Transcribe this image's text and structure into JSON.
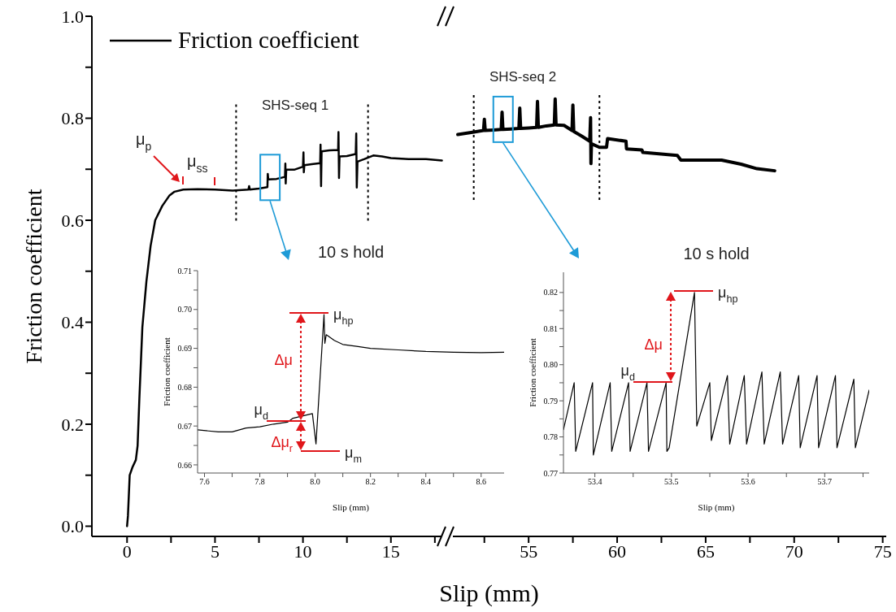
{
  "chart_data": [
    {
      "type": "line",
      "xlabel": "Slip (mm)",
      "ylabel": "Friction coefficient",
      "legend": "top left",
      "x": [
        0,
        0.05,
        0.15,
        0.3,
        0.5,
        0.6,
        0.7,
        0.87,
        1.1,
        1.34,
        1.6,
        2.0,
        2.4,
        2.7,
        3.2,
        4.0,
        5.0,
        6.0,
        6.9,
        6.94,
        6.98,
        7.5,
        7.98,
        8.0,
        8.03,
        8.5,
        8.98,
        9.0,
        9.02,
        9.05,
        9.5,
        10.0,
        10.03,
        10.05,
        10.08,
        10.5,
        10.98,
        11.0,
        11.03,
        11.06,
        11.5,
        12.0,
        12.02,
        12.05,
        12.08,
        12.5,
        13.0,
        13.03,
        13.06,
        13.1,
        13.5,
        14.0,
        14.5,
        15.0,
        16.0,
        17.0,
        17.9
      ],
      "series": [
        {
          "name": "Friction coefficient",
          "color": "#000000",
          "values": [
            0,
            0.02,
            0.1,
            0.115,
            0.13,
            0.158,
            0.25,
            0.39,
            0.48,
            0.55,
            0.6,
            0.628,
            0.648,
            0.656,
            0.66,
            0.661,
            0.66,
            0.658,
            0.66,
            0.667,
            0.66,
            0.662,
            0.665,
            0.691,
            0.68,
            0.681,
            0.685,
            0.711,
            0.672,
            0.699,
            0.699,
            0.705,
            0.733,
            0.694,
            0.708,
            0.71,
            0.712,
            0.748,
            0.667,
            0.735,
            0.737,
            0.738,
            0.773,
            0.683,
            0.725,
            0.726,
            0.73,
            0.77,
            0.664,
            0.715,
            0.72,
            0.727,
            0.725,
            0.722,
            0.72,
            0.72,
            0.717
          ]
        }
      ],
      "xlim": [
        -2.0,
        18.2
      ],
      "ylim": [
        -0.02,
        1.0
      ],
      "xticks": [
        0,
        {
          "value": 2.5,
          "label": null
        },
        5,
        {
          "value": 7.5,
          "label": null
        },
        10,
        {
          "value": 12.5,
          "label": null
        },
        15,
        {
          "value": 17.5,
          "label": null
        }
      ],
      "yticks": [
        {
          "value": 0,
          "label": "0.0"
        },
        {
          "value": 0.1,
          "label": null
        },
        0.2,
        {
          "value": 0.3,
          "label": null
        },
        0.4,
        {
          "value": 0.5,
          "label": null
        },
        0.6,
        {
          "value": 0.7,
          "label": null
        },
        0.8,
        {
          "value": 0.9,
          "label": null
        },
        {
          "value": 1,
          "label": "1.0"
        }
      ],
      "ref_lines": [
        {
          "axis": "x",
          "value": 6.2,
          "color": "#000000",
          "line_style": "dotted"
        },
        {
          "axis": "x",
          "value": 13.7,
          "color": "#000000",
          "line_style": "dotted"
        }
      ],
      "annotations": [
        "μ$_{p}$",
        "μ$_{ss}$",
        "SHS-seq 1"
      ]
    },
    {
      "type": "line",
      "tick_labels": "x",
      "x": [
        51.0,
        51.9,
        52.45,
        52.5,
        52.55,
        53.0,
        53.45,
        53.5,
        53.55,
        54.0,
        54.45,
        54.5,
        54.55,
        55.0,
        55.45,
        55.5,
        55.55,
        56.0,
        56.45,
        56.5,
        56.55,
        57.0,
        57.45,
        57.5,
        57.55,
        58.0,
        58.45,
        58.5,
        58.52,
        58.55,
        59.0,
        59.4,
        59.46,
        60.5,
        60.53,
        61.4,
        61.45,
        63.4,
        63.6,
        65.9,
        67.0,
        67.9,
        68.9
      ],
      "series": [
        {
          "color": "#000000",
          "values": [
            0.768,
            0.773,
            0.776,
            0.798,
            0.776,
            0.777,
            0.778,
            0.812,
            0.778,
            0.779,
            0.78,
            0.82,
            0.78,
            0.781,
            0.782,
            0.833,
            0.782,
            0.785,
            0.787,
            0.838,
            0.787,
            0.786,
            0.776,
            0.826,
            0.774,
            0.765,
            0.755,
            0.801,
            0.711,
            0.75,
            0.743,
            0.743,
            0.76,
            0.755,
            0.74,
            0.738,
            0.733,
            0.727,
            0.718,
            0.718,
            0.71,
            0.701,
            0.697
          ]
        }
      ],
      "xlim": [
        50.4,
        75.2
      ],
      "ylim": [
        -0.02,
        1.0
      ],
      "xticks": [
        {
          "value": 52.5,
          "label": null
        },
        55,
        {
          "value": 57.5,
          "label": null
        },
        60,
        {
          "value": 62.5,
          "label": null
        },
        65,
        {
          "value": 67.5,
          "label": null
        },
        70,
        {
          "value": 72.5,
          "label": null
        },
        75
      ],
      "ref_lines": [
        {
          "axis": "x",
          "value": 51.9,
          "color": "#000000",
          "line_style": "dotted"
        },
        {
          "axis": "x",
          "value": 59.0,
          "color": "#000000",
          "line_style": "dotted"
        }
      ],
      "annotations": [
        "SHS-seq 2"
      ]
    },
    {
      "type": "line",
      "title": "10 s hold",
      "xlabel": "Slip (mm)",
      "ylabel": "Friction coefficient",
      "x": [
        7.575,
        7.65,
        7.7,
        7.75,
        7.8,
        7.85,
        7.9,
        7.92,
        7.99,
        8.003,
        8.032,
        8.035,
        8.04,
        8.07,
        8.1,
        8.15,
        8.2,
        8.3,
        8.4,
        8.5,
        8.6,
        8.683
      ],
      "series": [
        {
          "color": "#000000",
          "values": [
            0.669,
            0.6685,
            0.6685,
            0.6695,
            0.6698,
            0.6705,
            0.671,
            0.672,
            0.6732,
            0.6654,
            0.6987,
            0.6913,
            0.6935,
            0.692,
            0.691,
            0.6905,
            0.69,
            0.6896,
            0.6892,
            0.689,
            0.6889,
            0.689
          ]
        }
      ],
      "xlim": [
        7.575,
        8.683
      ],
      "ylim": [
        0.6579,
        0.71
      ],
      "xticks": [
        7.6,
        {
          "value": 7.7,
          "label": null
        },
        7.8,
        {
          "value": 7.9,
          "label": null
        },
        {
          "value": 8,
          "label": "8.0"
        },
        {
          "value": 8.1,
          "label": null
        },
        8.2,
        {
          "value": 8.3,
          "label": null
        },
        8.4,
        {
          "value": 8.5,
          "label": null
        },
        8.6
      ],
      "yticks": [
        0.66,
        {
          "value": 0.665,
          "label": null
        },
        0.67,
        {
          "value": 0.675,
          "label": null
        },
        0.68,
        {
          "value": 0.685,
          "label": null
        },
        0.69,
        {
          "value": 0.695,
          "label": null
        },
        {
          "value": 0.7,
          "label": "0.70"
        },
        {
          "value": 0.705,
          "label": null
        },
        0.71
      ],
      "annotations": [
        "μ$_{hp}$",
        "μ$_{d}$",
        "μ$_{m}$",
        "Δμ",
        "Δμ$_{r}$"
      ]
    },
    {
      "type": "line",
      "title": "10 s hold",
      "xlabel": "Slip (mm)",
      "ylabel": "Friction coefficient",
      "x": [
        53.359,
        53.373,
        53.375,
        53.397,
        53.398,
        53.42,
        53.422,
        53.444,
        53.446,
        53.468,
        53.47,
        53.493,
        53.494,
        53.497,
        53.53,
        53.533,
        53.55,
        53.552,
        53.573,
        53.576,
        53.595,
        53.598,
        53.618,
        53.621,
        53.642,
        53.645,
        53.666,
        53.668,
        53.69,
        53.692,
        53.714,
        53.716,
        53.738,
        53.74,
        53.758
      ],
      "series": [
        {
          "color": "#000000",
          "values": [
            0.782,
            0.795,
            0.776,
            0.795,
            0.775,
            0.795,
            0.776,
            0.795,
            0.776,
            0.795,
            0.776,
            0.795,
            0.776,
            0.777,
            0.82,
            0.783,
            0.795,
            0.779,
            0.797,
            0.778,
            0.797,
            0.778,
            0.798,
            0.778,
            0.798,
            0.778,
            0.797,
            0.777,
            0.797,
            0.777,
            0.797,
            0.777,
            0.796,
            0.777,
            0.793
          ]
        }
      ],
      "xlim": [
        53.359,
        53.758
      ],
      "ylim": [
        0.77,
        0.8256
      ],
      "xticks": [
        53.4,
        {
          "value": 53.45,
          "label": null
        },
        53.5,
        {
          "value": 53.55,
          "label": null
        },
        53.6,
        {
          "value": 53.65,
          "label": null
        },
        53.7,
        {
          "value": 53.75,
          "label": null
        }
      ],
      "yticks": [
        0.77,
        {
          "value": 0.775,
          "label": null
        },
        0.78,
        {
          "value": 0.785,
          "label": null
        },
        0.79,
        {
          "value": 0.795,
          "label": null
        },
        {
          "value": 0.8,
          "label": "0.80"
        },
        {
          "value": 0.805,
          "label": null
        },
        0.81,
        {
          "value": 0.815,
          "label": null
        },
        0.82
      ],
      "annotations": [
        "μ$_{hp}$",
        "μ$_{d}$",
        "Δμ"
      ]
    }
  ]
}
